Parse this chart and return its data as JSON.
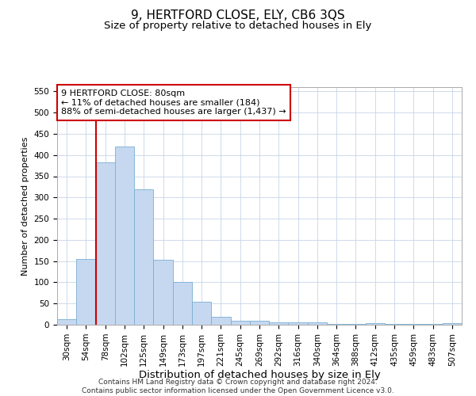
{
  "title": "9, HERTFORD CLOSE, ELY, CB6 3QS",
  "subtitle": "Size of property relative to detached houses in Ely",
  "xlabel": "Distribution of detached houses by size in Ely",
  "ylabel": "Number of detached properties",
  "categories": [
    "30sqm",
    "54sqm",
    "78sqm",
    "102sqm",
    "125sqm",
    "149sqm",
    "173sqm",
    "197sqm",
    "221sqm",
    "245sqm",
    "269sqm",
    "292sqm",
    "316sqm",
    "340sqm",
    "364sqm",
    "388sqm",
    "412sqm",
    "435sqm",
    "459sqm",
    "483sqm",
    "507sqm"
  ],
  "values": [
    13,
    155,
    383,
    420,
    320,
    153,
    100,
    55,
    19,
    10,
    10,
    5,
    5,
    5,
    2,
    2,
    3,
    1,
    2,
    1,
    3
  ],
  "bar_color": "#c5d8f0",
  "bar_edge_color": "#7aafd4",
  "vline_x": 1.5,
  "vline_color": "#cc0000",
  "annotation_line1": "9 HERTFORD CLOSE: 80sqm",
  "annotation_line2": "← 11% of detached houses are smaller (184)",
  "annotation_line3": "88% of semi-detached houses are larger (1,437) →",
  "annotation_box_color": "#ffffff",
  "annotation_box_edge_color": "#cc0000",
  "ylim": [
    0,
    560
  ],
  "yticks": [
    0,
    50,
    100,
    150,
    200,
    250,
    300,
    350,
    400,
    450,
    500,
    550
  ],
  "title_fontsize": 11,
  "subtitle_fontsize": 9.5,
  "xlabel_fontsize": 9.5,
  "ylabel_fontsize": 8,
  "tick_fontsize": 7.5,
  "annotation_fontsize": 8,
  "footer": "Contains HM Land Registry data © Crown copyright and database right 2024.\nContains public sector information licensed under the Open Government Licence v3.0.",
  "footer_fontsize": 6.5,
  "background_color": "#ffffff",
  "grid_color": "#c8d4e8"
}
